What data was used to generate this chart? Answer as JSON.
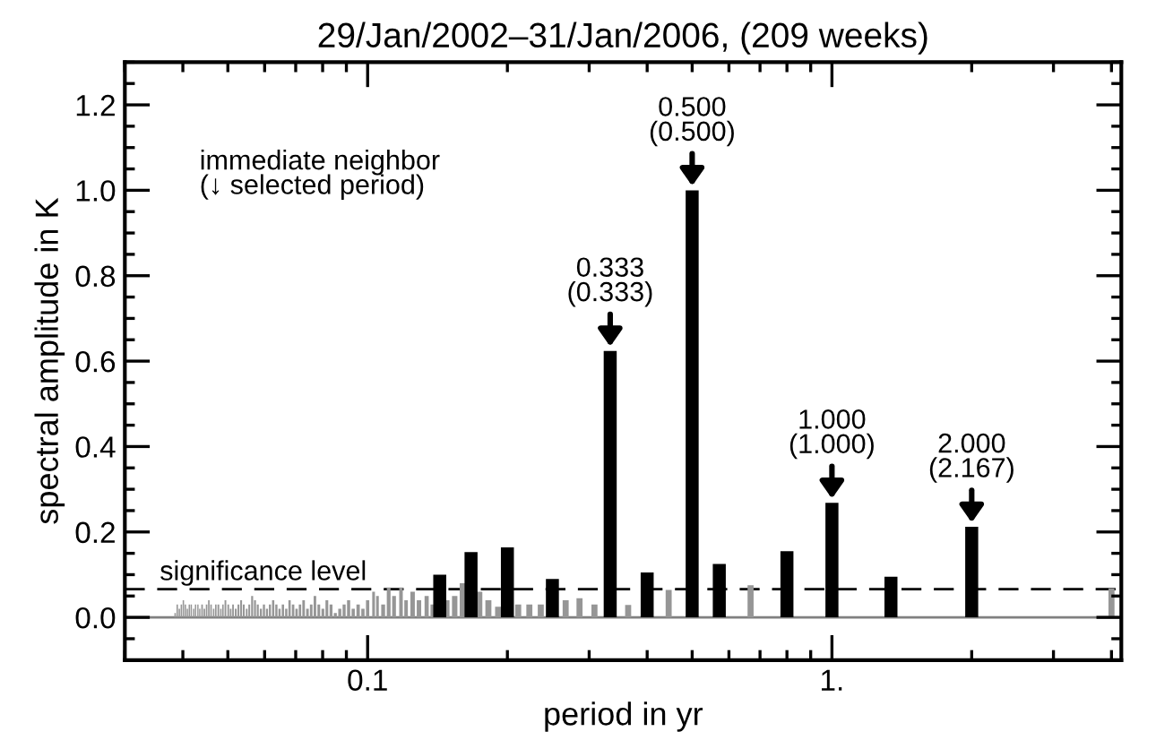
{
  "chart_data": {
    "type": "bar",
    "title": "29/Jan/2002–31/Jan/2006, (209 weeks)",
    "xlabel": "period in yr",
    "ylabel": "spectral amplitude in K",
    "log": "x",
    "xlim": [
      0.03,
      4.2
    ],
    "ylim": [
      -0.1,
      1.3
    ],
    "xticks": [
      {
        "value": 0.1,
        "label": "0.1"
      },
      {
        "value": 1,
        "label": "1."
      }
    ],
    "yticks": [
      {
        "value": 0,
        "label": "0.0"
      },
      0.2,
      0.4,
      0.6,
      0.8,
      {
        "value": 1,
        "label": "1.0"
      },
      1.2
    ],
    "grid": false,
    "legend": false,
    "series": [
      {
        "color": "#000000",
        "x": [
          0.143,
          0.167,
          0.2,
          0.25,
          0.333,
          0.4,
          0.5,
          0.572,
          0.8,
          1.0,
          1.34,
          2.0
        ],
        "values": [
          0.1,
          0.153,
          0.164,
          0.09,
          0.624,
          0.105,
          1.0,
          0.125,
          0.155,
          0.268,
          0.095,
          0.212
        ]
      },
      {
        "color": "#969696",
        "x": [
          4.0,
          0.668,
          0.445,
          0.364,
          0.308,
          0.286,
          0.267,
          0.236,
          0.223,
          0.211,
          0.191,
          0.182,
          0.174,
          0.16,
          0.154,
          0.148,
          0.138,
          0.134,
          0.129,
          0.125,
          0.121,
          0.118,
          0.114,
          0.111,
          0.108,
          0.105,
          0.103,
          0.1,
          0.0977,
          0.0954,
          0.0931,
          0.091,
          0.089,
          0.0871,
          0.0852,
          0.0834,
          0.0817,
          0.0801,
          0.0785,
          0.077,
          0.0756,
          0.0742,
          0.0728,
          0.0715,
          0.0703,
          0.0691,
          0.0679,
          0.0668,
          0.0657,
          0.0646,
          0.0636,
          0.0626,
          0.0616,
          0.0607,
          0.0598,
          0.0589,
          0.058,
          0.0572,
          0.0564,
          0.0556,
          0.0549,
          0.0541,
          0.0534,
          0.0527,
          0.052,
          0.0513,
          0.0507,
          0.0501,
          0.0494,
          0.0488,
          0.0483,
          0.0477,
          0.0471,
          0.0466,
          0.046,
          0.0455,
          0.045,
          0.0445,
          0.044,
          0.0435,
          0.0431,
          0.0426,
          0.0422,
          0.0417,
          0.0413,
          0.0409,
          0.0405,
          0.0401,
          0.0397,
          0.0393,
          0.0389,
          0.0385
        ],
        "values": [
          0.068,
          0.075,
          0.064,
          0.029,
          0.03,
          0.045,
          0.04,
          0.03,
          0.03,
          0.03,
          0.025,
          0.04,
          0.06,
          0.08,
          0.05,
          0.04,
          0.03,
          0.05,
          0.04,
          0.06,
          0.04,
          0.07,
          0.05,
          0.07,
          0.03,
          0.05,
          0.06,
          0.04,
          0.02,
          0.03,
          0.02,
          0.04,
          0.03,
          0.02,
          0.01,
          0.03,
          0.04,
          0.02,
          0.03,
          0.05,
          0.03,
          0.02,
          0.04,
          0.03,
          0.02,
          0.03,
          0.04,
          0.02,
          0.03,
          0.02,
          0.03,
          0.04,
          0.03,
          0.02,
          0.03,
          0.02,
          0.03,
          0.04,
          0.05,
          0.03,
          0.02,
          0.03,
          0.04,
          0.03,
          0.02,
          0.03,
          0.02,
          0.03,
          0.04,
          0.03,
          0.02,
          0.03,
          0.03,
          0.02,
          0.03,
          0.04,
          0.03,
          0.02,
          0.03,
          0.02,
          0.03,
          0.03,
          0.02,
          0.03,
          0.03,
          0.02,
          0.03,
          0.04,
          0.03,
          0.02,
          0.03,
          0.01
        ]
      }
    ],
    "ref_lines": [
      {
        "axis": "y",
        "value": 0.066,
        "label": "significance level",
        "line_style": "dashed",
        "color": "#000000"
      },
      {
        "axis": "y",
        "value": 0,
        "color": "#808080",
        "line_style": "solid"
      }
    ],
    "annotations": [
      "immediate neighbor\n(↓ selected period)",
      {
        "text": "0.333\n(0.333)",
        "x": 0.333,
        "y": 0.624
      },
      {
        "text": "0.500\n(0.500)",
        "x": 0.5,
        "y": 1.0
      },
      {
        "text": "1.000\n(1.000)",
        "x": 1.0,
        "y": 0.268
      },
      {
        "text": "2.000\n(2.167)",
        "x": 2.0,
        "y": 0.212
      }
    ]
  }
}
